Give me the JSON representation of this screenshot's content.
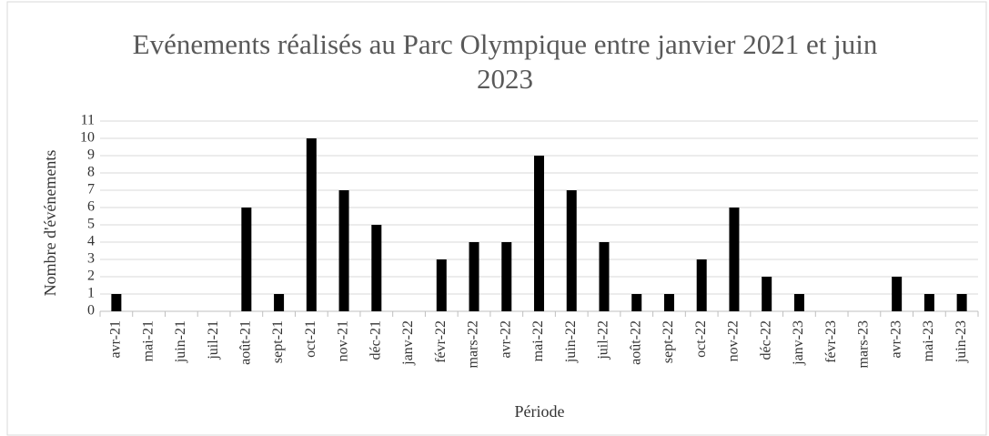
{
  "chart_data": {
    "type": "bar",
    "title": "Evénements réalisés au Parc Olympique entre janvier 2021 et juin 2023",
    "x_label": "Période",
    "y_label": "Nombre d'événements",
    "categories": [
      "avr-21",
      "mai-21",
      "juin-21",
      "juil-21",
      "août-21",
      "sept-21",
      "oct-21",
      "nov-21",
      "déc-21",
      "janv-22",
      "févr-22",
      "mars-22",
      "avr-22",
      "mai-22",
      "juin-22",
      "juil-22",
      "août-22",
      "sept-22",
      "oct-22",
      "nov-22",
      "déc-22",
      "janv-23",
      "févr-23",
      "mars-23",
      "avr-23",
      "mai-23",
      "juin-23"
    ],
    "values": [
      1,
      0,
      0,
      0,
      6,
      1,
      10,
      7,
      5,
      0,
      3,
      4,
      4,
      9,
      7,
      4,
      1,
      1,
      3,
      6,
      2,
      1,
      0,
      0,
      2,
      1,
      1
    ],
    "color": "#000000",
    "ylim": [
      0,
      11
    ],
    "yticks": [
      0,
      1,
      2,
      3,
      4,
      5,
      6,
      7,
      8,
      9,
      10,
      11
    ],
    "grid": true
  }
}
